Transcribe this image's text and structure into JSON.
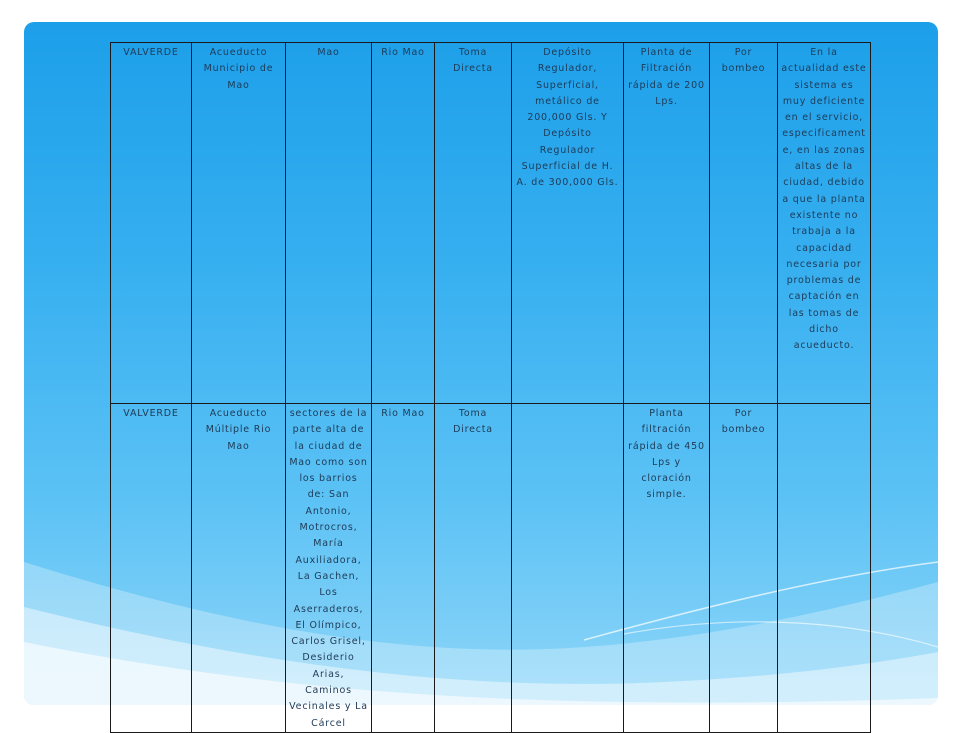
{
  "table": {
    "rows": [
      {
        "provincia": "VALVERDE",
        "acueducto": "Acueducto Municipio de Mao",
        "zona": "Mao",
        "fuente": "Rio Mao",
        "toma": "Toma Directa",
        "deposito": "Depósito Regulador, Superficial, metálico de 200,000 Gls. Y Depósito Regulador Superficial de H. A. de 300,000 Gls.",
        "planta": "Planta de Filtración rápida de 200 Lps.",
        "sistema": "Por bombeo",
        "observaciones": "En la actualidad este sistema es muy deficiente en el servicio, especificamente, en las zonas altas de la ciudad, debido a que la planta existente no trabaja a la capacidad necesaria por problemas de captación en las tomas de dicho acueducto."
      },
      {
        "provincia": "VALVERDE",
        "acueducto": "Acueducto Múltiple Rio Mao",
        "zona": "sectores de la parte alta de la ciudad de Mao como son los barrios de: San Antonio, Motrocros, María Auxiliadora, La Gachen, Los Aserraderos, El Olímpico, Carlos Grisel, Desiderio Arias, Caminos Vecinales y La Cárcel",
        "fuente": "Rio Mao",
        "toma": "Toma Directa",
        "deposito": "",
        "planta": "Planta filtración rápida de 450 Lps y cloración simple.",
        "sistema": "Por bombeo",
        "observaciones": ""
      }
    ]
  }
}
